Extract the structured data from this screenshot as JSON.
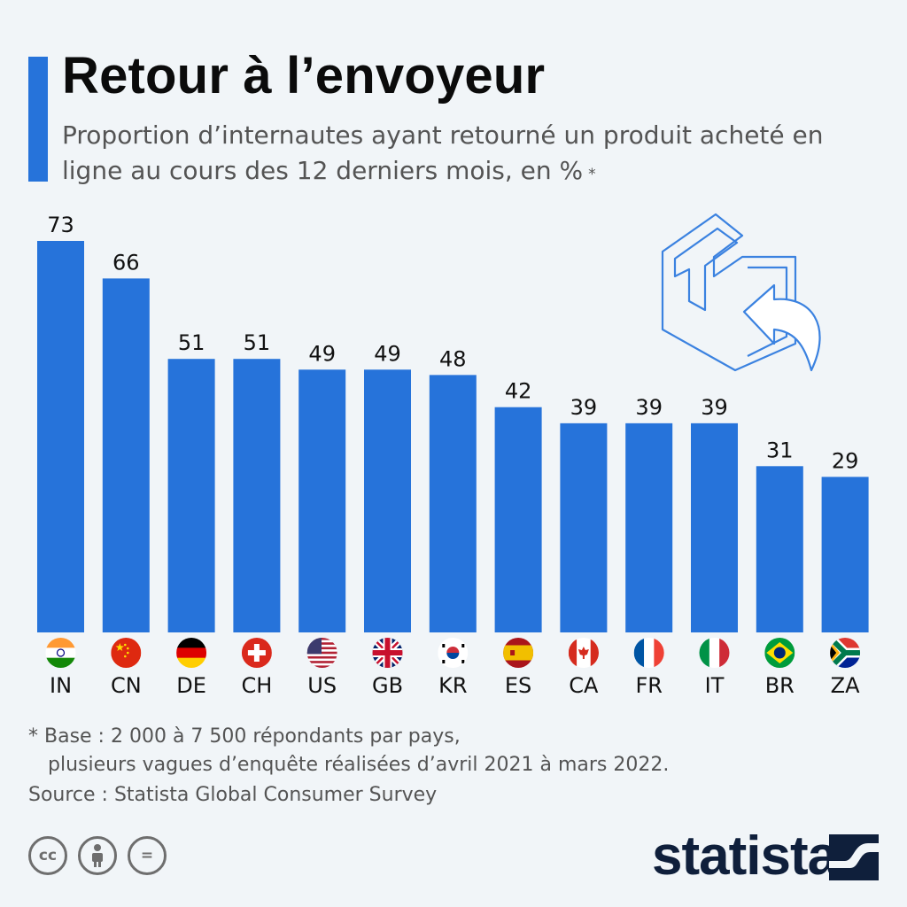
{
  "header": {
    "title": "Retour à l’envoyeur",
    "subtitle": "Proportion d’internautes ayant retourné un produit acheté en ligne au cours des 12 derniers mois, en %",
    "subtitle_marker": "*"
  },
  "chart_data": {
    "type": "bar",
    "categories": [
      "IN",
      "CN",
      "DE",
      "CH",
      "US",
      "GB",
      "KR",
      "ES",
      "CA",
      "FR",
      "IT",
      "BR",
      "ZA"
    ],
    "values": [
      73,
      66,
      51,
      51,
      49,
      49,
      48,
      42,
      39,
      39,
      39,
      31,
      29
    ],
    "ylim": [
      0,
      73
    ],
    "grid": false,
    "legend": "none",
    "bar_color": "#2673da",
    "data_labels": true,
    "category_flags": [
      "india-flag",
      "china-flag",
      "germany-flag",
      "switzerland-flag",
      "usa-flag",
      "uk-flag",
      "south-korea-flag",
      "spain-flag",
      "canada-flag",
      "france-flag",
      "italy-flag",
      "brazil-flag",
      "south-africa-flag"
    ]
  },
  "footer": {
    "footnote_line1": "* Base : 2 000 à 7 500 répondants par pays,",
    "footnote_line2": "plusieurs vagues d’enquête réalisées d’avril 2021 à mars 2022.",
    "source": "Source : Statista Global Consumer Survey",
    "license_icons": [
      "cc-icon",
      "by-icon",
      "nd-icon"
    ],
    "license_cc": "cc",
    "license_nd": "="
  },
  "brand": {
    "name": "statista"
  },
  "decor": {
    "illustration": "return-package-icon"
  },
  "colors": {
    "accent": "#2673da",
    "title": "#0b0b0b",
    "text": "#545454",
    "background": "#f1f5f8",
    "brand": "#0f1f3b"
  }
}
